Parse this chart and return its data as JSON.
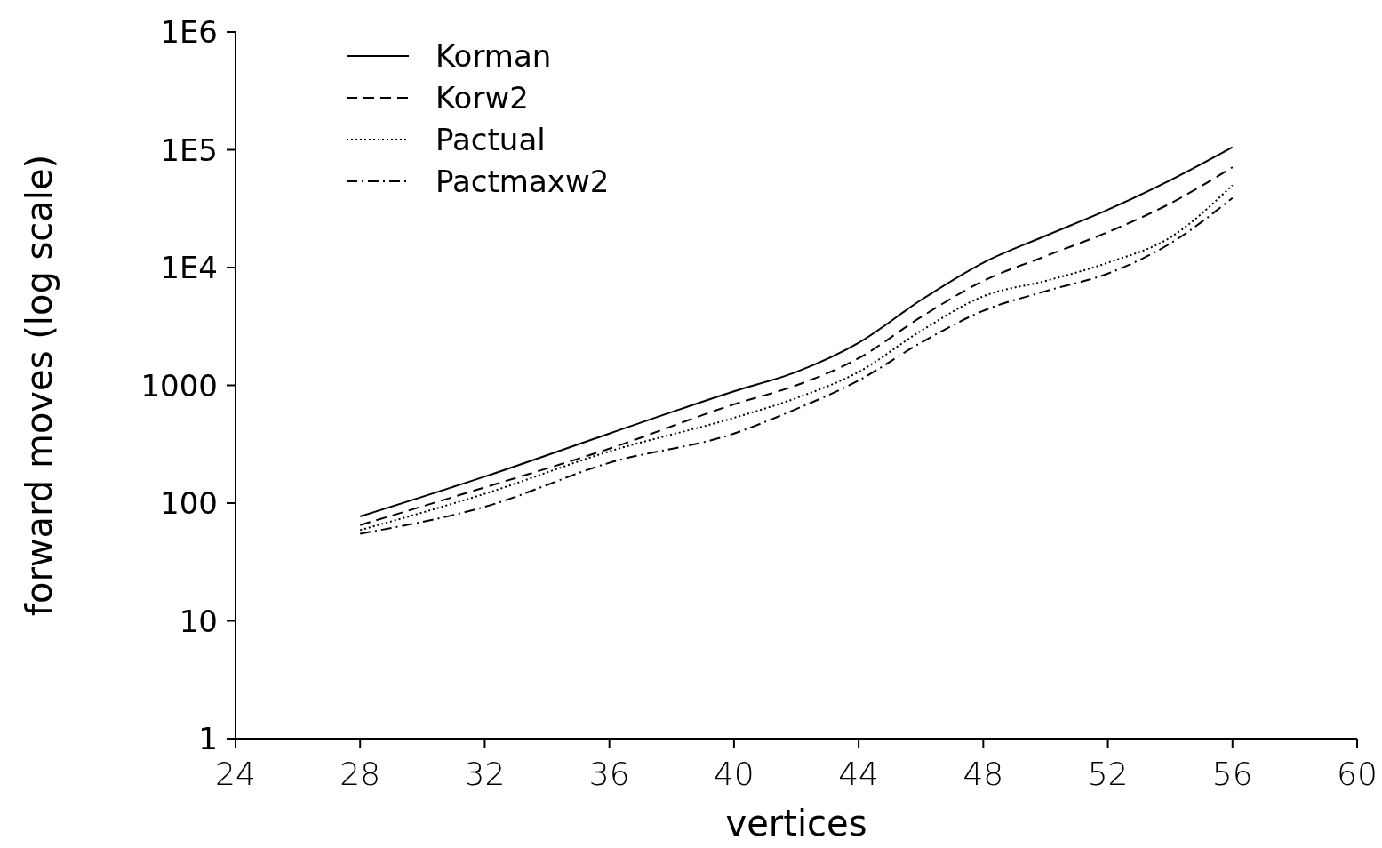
{
  "chart_data": {
    "type": "line",
    "xlabel": "vertices",
    "ylabel": "forward moves (log scale)",
    "log": "y",
    "grid": false,
    "legend": "top left",
    "marker": "none",
    "xlim": [
      24,
      60
    ],
    "xticks": [
      24,
      28,
      32,
      36,
      40,
      44,
      48,
      52,
      56,
      60
    ],
    "ylim": [
      1,
      1000000
    ],
    "yticks": [
      1,
      10,
      100,
      1000,
      {
        "value": 10000,
        "label": "1E4"
      },
      {
        "value": 100000,
        "label": "1E5"
      },
      {
        "value": 1000000,
        "label": "1E6"
      }
    ],
    "x": [
      28,
      32,
      36,
      40,
      42,
      44,
      46,
      48,
      50,
      52,
      54,
      56
    ],
    "series": [
      {
        "name": "Korman",
        "color": "#000000",
        "line_style": "solid",
        "values": [
          77,
          168,
          390,
          890,
          1300,
          2300,
          5300,
          11000,
          18600,
          31000,
          55000,
          105000
        ]
      },
      {
        "name": "Korw2",
        "color": "#000000",
        "line_style": "dashed",
        "values": [
          65,
          136,
          290,
          690,
          1000,
          1700,
          3800,
          7700,
          12500,
          20000,
          35000,
          71000
        ]
      },
      {
        "name": "Pactual",
        "color": "#000000",
        "line_style": "dotted",
        "values": [
          59,
          120,
          275,
          530,
          780,
          1300,
          2900,
          5700,
          7700,
          11000,
          18000,
          50000
        ]
      },
      {
        "name": "Pactmaxw2",
        "color": "#000000",
        "line_style": "dashdot",
        "values": [
          55,
          93,
          220,
          390,
          630,
          1100,
          2300,
          4300,
          6300,
          8900,
          16000,
          39000
        ]
      }
    ]
  }
}
